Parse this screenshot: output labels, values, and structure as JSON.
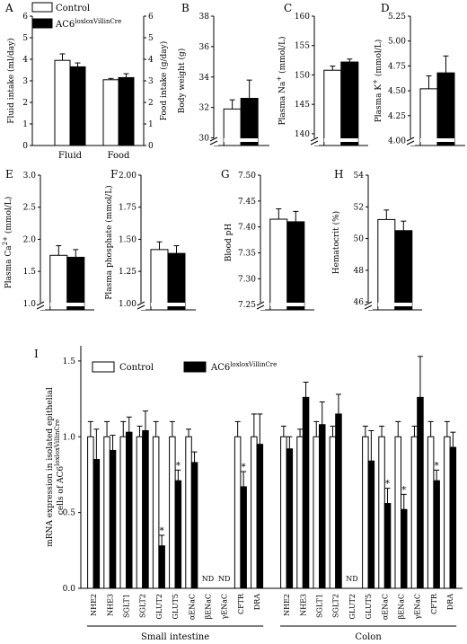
{
  "legend": {
    "control": "Control",
    "ko_base": "AC6",
    "ko_sup": "loxloxVillinCre"
  },
  "panels": [
    {
      "letter": "A",
      "type": "bar-dual",
      "categories": [
        "Fluid",
        "Food"
      ],
      "ylabel_left": "Fluid intake (ml/day)",
      "ylabel_right": "Food intake (g/day)",
      "ylim": [
        0,
        6
      ],
      "ticks": [
        0,
        1,
        2,
        3,
        4,
        5,
        6
      ],
      "series": [
        {
          "name": "Control",
          "values": [
            3.95,
            3.05
          ],
          "errors": [
            0.3,
            0.06
          ]
        },
        {
          "name": "AC6loxloxVillinCre",
          "values": [
            3.65,
            3.15
          ],
          "errors": [
            0.18,
            0.18
          ]
        }
      ]
    },
    {
      "letter": "B",
      "type": "bar",
      "ylabel": "Body weight (g)",
      "ylim": [
        29.5,
        38
      ],
      "ticks": [
        30,
        32,
        34,
        36,
        38
      ],
      "tick_labels": [
        "30",
        "32",
        "34",
        "36",
        "38"
      ],
      "axis_break": true,
      "series": [
        {
          "name": "Control",
          "values": [
            31.9
          ],
          "errors": [
            0.6
          ]
        },
        {
          "name": "AC6loxloxVillinCre",
          "values": [
            32.6
          ],
          "errors": [
            1.2
          ]
        }
      ]
    },
    {
      "letter": "C",
      "type": "bar",
      "ylabel_base": "Plasma Na",
      "ylabel_sup": "+",
      "ylabel_tail": " (mmol/L)",
      "ylim": [
        138,
        160
      ],
      "ticks": [
        140,
        145,
        150,
        155,
        160
      ],
      "tick_labels": [
        "140",
        "145",
        "150",
        "155",
        "160"
      ],
      "axis_break": true,
      "series": [
        {
          "name": "Control",
          "values": [
            150.8
          ],
          "errors": [
            0.7
          ]
        },
        {
          "name": "AC6loxloxVillinCre",
          "values": [
            152.2
          ],
          "errors": [
            0.5
          ]
        }
      ]
    },
    {
      "letter": "D",
      "type": "bar",
      "ylabel_base": "Plasma K",
      "ylabel_sup": "+",
      "ylabel_tail": " (mmol/L)",
      "ylim": [
        3.95,
        5.25
      ],
      "ticks": [
        4.0,
        4.25,
        4.5,
        4.75,
        5.0,
        5.25
      ],
      "tick_labels": [
        "4.00",
        "4.25",
        "4.50",
        "4.75",
        "5.00",
        "5.25"
      ],
      "axis_break": true,
      "series": [
        {
          "name": "Control",
          "values": [
            4.52
          ],
          "errors": [
            0.13
          ]
        },
        {
          "name": "AC6loxloxVillinCre",
          "values": [
            4.68
          ],
          "errors": [
            0.17
          ]
        }
      ]
    },
    {
      "letter": "E",
      "type": "bar",
      "ylabel_base": "Plasma Ca",
      "ylabel_sup": "2+",
      "ylabel_tail": " (mmol/L)",
      "ylim": [
        0.9,
        3.0
      ],
      "ticks": [
        1.0,
        1.5,
        2.0,
        2.5,
        3.0
      ],
      "tick_labels": [
        "1.0",
        "1.5",
        "2.0",
        "2.5",
        "3.0"
      ],
      "axis_break": true,
      "series": [
        {
          "name": "Control",
          "values": [
            1.75
          ],
          "errors": [
            0.15
          ]
        },
        {
          "name": "AC6loxloxVillinCre",
          "values": [
            1.72
          ],
          "errors": [
            0.12
          ]
        }
      ]
    },
    {
      "letter": "F",
      "type": "bar",
      "ylabel": "Plasma phosphate (mmol/L)",
      "ylim": [
        0.95,
        2.0
      ],
      "ticks": [
        1.0,
        1.25,
        1.5,
        1.75,
        2.0
      ],
      "tick_labels": [
        "1.00",
        "1.25",
        "1.50",
        "1.75",
        "2.00"
      ],
      "axis_break": true,
      "series": [
        {
          "name": "Control",
          "values": [
            1.42
          ],
          "errors": [
            0.06
          ]
        },
        {
          "name": "AC6loxloxVillinCre",
          "values": [
            1.39
          ],
          "errors": [
            0.06
          ]
        }
      ]
    },
    {
      "letter": "G",
      "type": "bar",
      "ylabel": "Blood pH",
      "ylim": [
        7.24,
        7.5
      ],
      "ticks": [
        7.25,
        7.3,
        7.35,
        7.4,
        7.45,
        7.5
      ],
      "tick_labels": [
        "7.25",
        "7.30",
        "7.35",
        "7.40",
        "7.45",
        "7.50"
      ],
      "axis_break": true,
      "series": [
        {
          "name": "Control",
          "values": [
            7.415
          ],
          "errors": [
            0.02
          ]
        },
        {
          "name": "AC6loxloxVillinCre",
          "values": [
            7.41
          ],
          "errors": [
            0.02
          ]
        }
      ]
    },
    {
      "letter": "H",
      "type": "bar",
      "ylabel": "Hematocrit (%)",
      "ylim": [
        45.5,
        54
      ],
      "ticks": [
        46,
        48,
        50,
        52,
        54
      ],
      "tick_labels": [
        "46",
        "48",
        "50",
        "52",
        "54"
      ],
      "axis_break": true,
      "series": [
        {
          "name": "Control",
          "values": [
            51.2
          ],
          "errors": [
            0.6
          ]
        },
        {
          "name": "AC6loxloxVillinCre",
          "values": [
            50.5
          ],
          "errors": [
            0.6
          ]
        }
      ]
    }
  ],
  "chart_data": {
    "type": "bar",
    "panel_letter": "I",
    "ylabel_line1": "mRNA expression in isolated epithelial",
    "ylabel_line2_base": "cells of AC6",
    "ylabel_line2_sup": "loxloxVillinCre",
    "ylim": [
      0,
      1.6
    ],
    "ticks": [
      0,
      0.5,
      1.0,
      1.5
    ],
    "tick_labels": [
      "0.0",
      "0.5",
      "1.0",
      "1.5"
    ],
    "groups": [
      {
        "name": "Small intestine",
        "genes": [
          "NHE2",
          "NHE3",
          "SGLT1",
          "SGLT2",
          "GLUT2",
          "GLUT5",
          "αENaC",
          "βENaC",
          "γENaC",
          "CFTR",
          "DRA"
        ],
        "control": [
          1.0,
          1.0,
          1.0,
          1.0,
          1.0,
          1.0,
          1.0,
          null,
          null,
          1.0,
          1.0
        ],
        "control_err": [
          0.1,
          0.1,
          0.1,
          0.07,
          0.1,
          0.1,
          0.05,
          null,
          null,
          0.1,
          0.15
        ],
        "ko": [
          0.85,
          0.91,
          1.03,
          1.04,
          0.28,
          0.71,
          0.83,
          null,
          null,
          0.67,
          0.95
        ],
        "ko_err": [
          0.2,
          0.1,
          0.1,
          0.13,
          0.07,
          0.07,
          0.07,
          null,
          null,
          0.1,
          0.2
        ],
        "significant": [
          false,
          false,
          false,
          false,
          true,
          true,
          false,
          false,
          false,
          true,
          false
        ]
      },
      {
        "name": "Colon",
        "genes": [
          "NHE2",
          "NHE3",
          "SGLT1",
          "SGLT2",
          "GLUT2",
          "GLUT5",
          "αENaC",
          "βENaC",
          "γENaC",
          "CFTR",
          "DRA"
        ],
        "control": [
          1.0,
          1.0,
          1.0,
          1.0,
          null,
          1.0,
          1.0,
          1.0,
          1.0,
          1.0,
          1.0
        ],
        "control_err": [
          0.07,
          0.05,
          0.1,
          0.07,
          null,
          0.07,
          0.07,
          0.1,
          0.07,
          0.1,
          0.1
        ],
        "ko": [
          0.92,
          1.26,
          1.08,
          1.15,
          null,
          0.84,
          0.56,
          0.52,
          1.26,
          0.71,
          0.93
        ],
        "ko_err": [
          0.08,
          0.1,
          0.15,
          0.13,
          null,
          0.2,
          0.1,
          0.1,
          0.27,
          0.07,
          0.1
        ],
        "significant": [
          false,
          false,
          false,
          false,
          false,
          false,
          true,
          true,
          false,
          true,
          false
        ]
      }
    ],
    "nd_label": "ND",
    "significance_marker": "*",
    "colors": {
      "control": "#ffffff",
      "ko": "#000000",
      "axis": "#000000"
    }
  }
}
